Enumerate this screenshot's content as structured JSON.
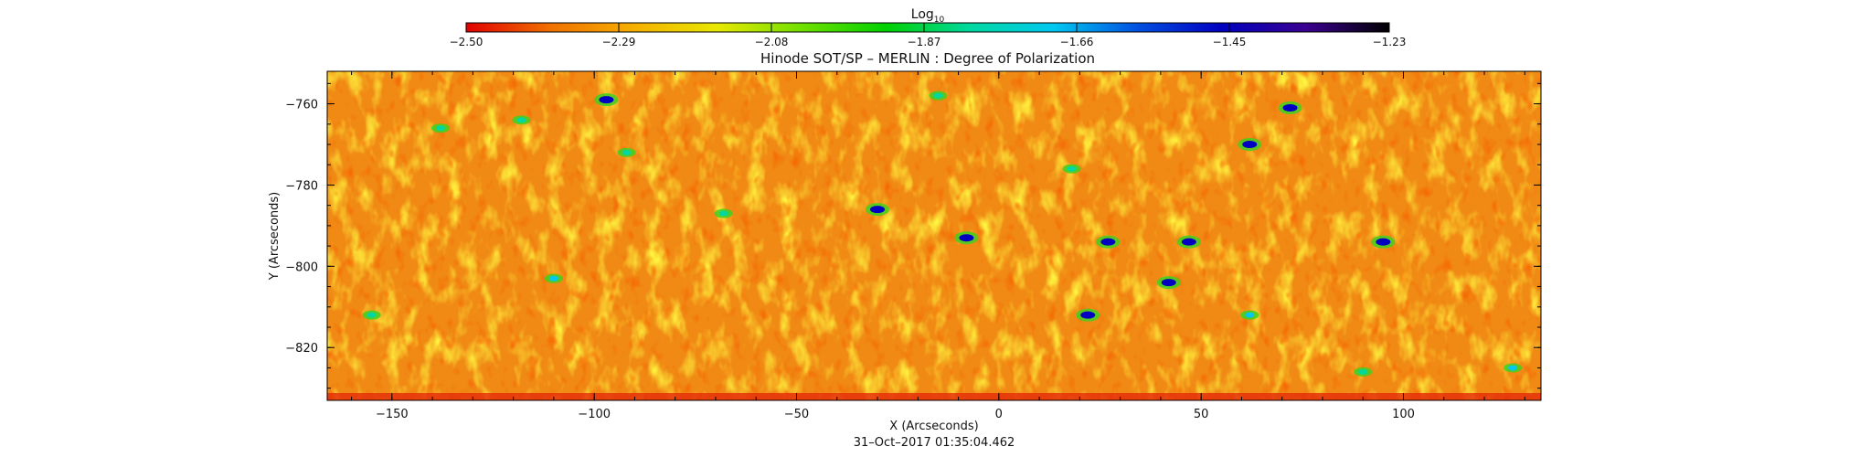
{
  "chart_data": {
    "type": "heatmap",
    "title": "Hinode SOT/SP – MERLIN : Degree of Polarization",
    "xlabel": "X (Arcseconds)",
    "ylabel": "Y (Arcseconds)",
    "timestamp": "31–Oct–2017  01:35:04.462",
    "xlim": [
      -166,
      134
    ],
    "ylim": [
      -833,
      -752
    ],
    "x_ticks": [
      -150,
      -100,
      -50,
      0,
      50,
      100
    ],
    "x_tick_labels": [
      "−150",
      "−100",
      "−50",
      "0",
      "50",
      "100"
    ],
    "y_ticks": [
      -760,
      -780,
      -800,
      -820
    ],
    "y_tick_labels": [
      "−760",
      "−780",
      "−800",
      "−820"
    ],
    "colorbar": {
      "label_main": "Log",
      "label_sub": "10",
      "range": [
        -2.5,
        -1.23
      ],
      "ticks": [
        -2.5,
        -2.29,
        -2.08,
        -1.87,
        -1.66,
        -1.45,
        -1.23
      ],
      "tick_labels": [
        "−2.50",
        "−2.29",
        "−2.08",
        "−1.87",
        "−1.66",
        "−1.45",
        "−1.23"
      ],
      "colors": [
        "#e00000",
        "#f07000",
        "#f5b000",
        "#e8e800",
        "#70e000",
        "#00d000",
        "#00d8a0",
        "#00c8f0",
        "#0050e0",
        "#0000c0",
        "#3a0090",
        "#000000"
      ]
    },
    "dominant_level": -2.3,
    "features": [
      {
        "x": -97,
        "y": -759,
        "value": -1.5
      },
      {
        "x": -30,
        "y": -786,
        "value": -1.5
      },
      {
        "x": -8,
        "y": -793,
        "value": -1.45
      },
      {
        "x": 22,
        "y": -812,
        "value": -1.45
      },
      {
        "x": 27,
        "y": -794,
        "value": -1.45
      },
      {
        "x": 42,
        "y": -804,
        "value": -1.45
      },
      {
        "x": 47,
        "y": -794,
        "value": -1.5
      },
      {
        "x": 62,
        "y": -770,
        "value": -1.45
      },
      {
        "x": 95,
        "y": -794,
        "value": -1.45
      },
      {
        "x": 72,
        "y": -761,
        "value": -1.5
      },
      {
        "x": -138,
        "y": -766,
        "value": -1.8
      },
      {
        "x": -118,
        "y": -764,
        "value": -1.8
      },
      {
        "x": -92,
        "y": -772,
        "value": -1.8
      },
      {
        "x": -68,
        "y": -787,
        "value": -1.8
      },
      {
        "x": -155,
        "y": -812,
        "value": -1.8
      },
      {
        "x": -15,
        "y": -758,
        "value": -1.8
      },
      {
        "x": 90,
        "y": -826,
        "value": -1.8
      },
      {
        "x": 127,
        "y": -825,
        "value": -1.7
      },
      {
        "x": 18,
        "y": -776,
        "value": -1.8
      },
      {
        "x": -110,
        "y": -803,
        "value": -1.65
      },
      {
        "x": 62,
        "y": -812,
        "value": -1.7
      }
    ]
  }
}
